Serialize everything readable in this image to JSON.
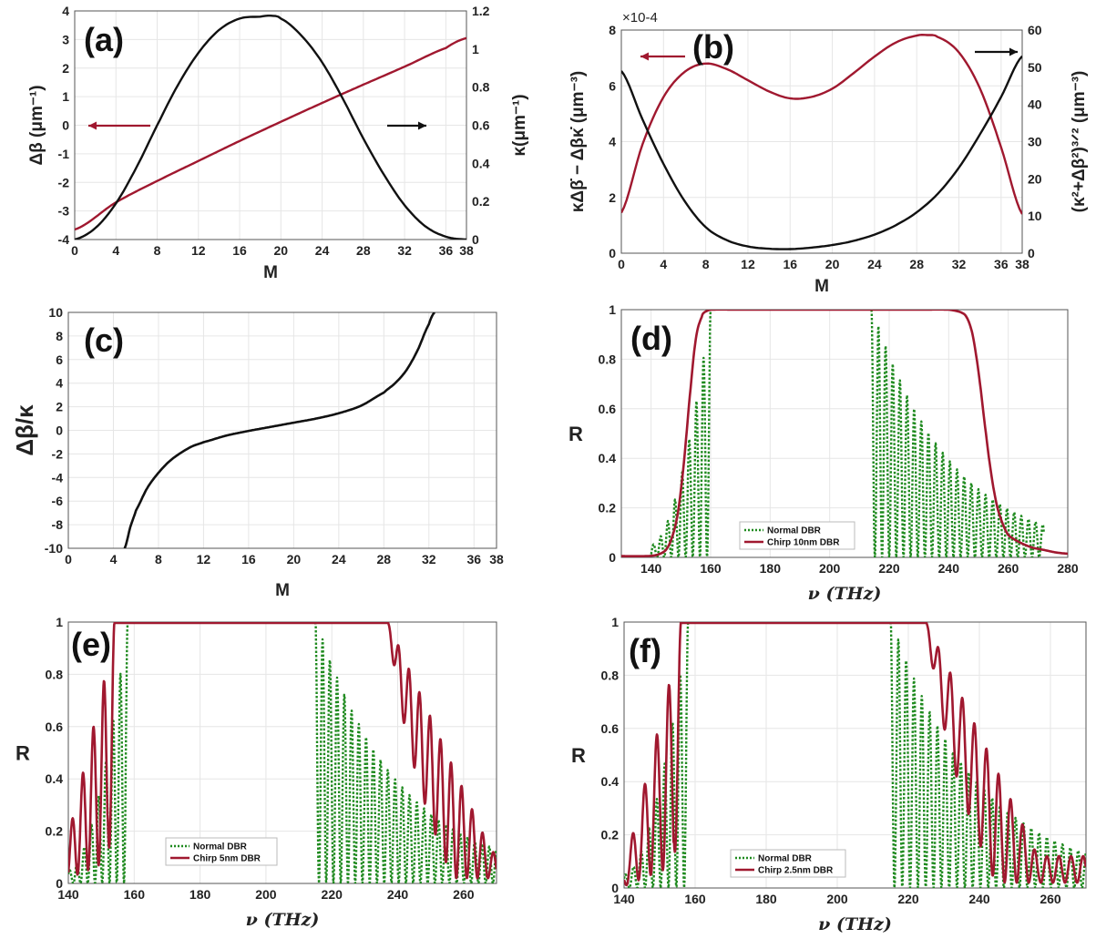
{
  "colors": {
    "red": "#a0182f",
    "green": "#1f8a1f",
    "black": "#111111",
    "grid": "#e6e6e6",
    "axis": "#555555"
  },
  "chart_data": [
    {
      "id": "a",
      "type": "line",
      "panel_label": "(a)",
      "xlabel": "M",
      "ylabel": "Δβ (μm⁻¹)",
      "ylabel_right": "κ(μm⁻¹)",
      "xlim": [
        0,
        38
      ],
      "ylim": [
        -4,
        4
      ],
      "ylim_right": [
        0,
        1.2
      ],
      "xticks": [
        "0",
        "4",
        "8",
        "12",
        "16",
        "20",
        "24",
        "28",
        "32",
        "36",
        "38"
      ],
      "yticks": [
        "-4",
        "-3",
        "-2",
        "-1",
        "0",
        "1",
        "2",
        "3",
        "4"
      ],
      "yticks_right": [
        "0",
        "0.2",
        "0.4",
        "0.6",
        "0.8",
        "1",
        "1.2"
      ],
      "series": [
        {
          "name": "Δβ",
          "axis": "left",
          "color": "red",
          "x": [
            0,
            4,
            8,
            12,
            16,
            20,
            24,
            28,
            32,
            36,
            38
          ],
          "y": [
            -3.65,
            -2.7,
            -1.95,
            -1.25,
            -0.55,
            0.12,
            0.78,
            1.42,
            2.05,
            2.7,
            3.05
          ]
        },
        {
          "name": "κ",
          "axis": "right",
          "color": "black",
          "x": [
            0,
            2,
            4,
            6,
            8,
            10,
            12,
            14,
            16,
            18,
            19,
            20,
            22,
            24,
            26,
            28,
            30,
            32,
            34,
            36,
            38
          ],
          "y": [
            0,
            0.06,
            0.19,
            0.38,
            0.6,
            0.81,
            0.98,
            1.1,
            1.16,
            1.17,
            1.175,
            1.16,
            1.07,
            0.93,
            0.74,
            0.53,
            0.34,
            0.18,
            0.07,
            0.015,
            0
          ]
        }
      ],
      "annotations": [
        "left-arrow red",
        "right-arrow black"
      ]
    },
    {
      "id": "b",
      "type": "line",
      "panel_label": "(b)",
      "xlabel": "M",
      "ylabel": "κΔβ̇ − Δβκ̇ (μm⁻³)",
      "ylabel_right": "(κ²+Δβ²)³ᐟ² (μm⁻³)",
      "multiplier": "×10-4",
      "xlim": [
        0,
        38
      ],
      "ylim": [
        0,
        8
      ],
      "ylim_right": [
        0,
        60
      ],
      "xticks": [
        "0",
        "4",
        "8",
        "12",
        "16",
        "20",
        "24",
        "28",
        "32",
        "36",
        "38"
      ],
      "yticks": [
        "0",
        "2",
        "4",
        "6",
        "8"
      ],
      "yticks_right": [
        "0",
        "10",
        "20",
        "30",
        "40",
        "50",
        "60"
      ],
      "series": [
        {
          "name": "κΔβ̇ − Δβκ̇",
          "axis": "left",
          "color": "red",
          "x": [
            0,
            2,
            4,
            6,
            8,
            10,
            12,
            14,
            16,
            18,
            20,
            22,
            24,
            26,
            28,
            29,
            30,
            32,
            34,
            36,
            38
          ],
          "y": [
            1.45,
            3.9,
            5.6,
            6.5,
            6.8,
            6.6,
            6.2,
            5.8,
            5.55,
            5.6,
            5.9,
            6.45,
            7.05,
            7.55,
            7.8,
            7.82,
            7.75,
            7.2,
            5.9,
            3.8,
            1.4
          ]
        },
        {
          "name": "(κ²+Δβ²)³ᐟ²",
          "axis": "right",
          "color": "black",
          "x": [
            0,
            2,
            4,
            6,
            8,
            10,
            12,
            14,
            16,
            18,
            20,
            22,
            24,
            26,
            28,
            30,
            32,
            34,
            36,
            38
          ],
          "y": [
            49,
            36,
            24,
            14,
            7,
            3.5,
            1.8,
            1.2,
            1.1,
            1.5,
            2.2,
            3.3,
            5,
            7.5,
            11,
            16,
            23,
            32,
            42,
            53
          ]
        }
      ],
      "annotations": [
        "left-arrow red",
        "right-arrow black"
      ]
    },
    {
      "id": "c",
      "type": "line",
      "panel_label": "(c)",
      "xlabel": "M",
      "ylabel": "Δβ/κ",
      "xlim": [
        0,
        38
      ],
      "ylim": [
        -10,
        10
      ],
      "xticks": [
        "0",
        "4",
        "8",
        "12",
        "16",
        "20",
        "24",
        "28",
        "32",
        "36",
        "38"
      ],
      "yticks": [
        "-10",
        "-8",
        "-6",
        "-4",
        "-2",
        "0",
        "2",
        "4",
        "6",
        "8",
        "10"
      ],
      "series": [
        {
          "name": "Δβ/κ",
          "color": "black",
          "x": [
            5,
            5.5,
            6,
            7,
            8,
            9,
            10,
            11,
            12,
            14,
            16,
            18,
            20,
            22,
            24,
            26,
            28,
            29,
            30,
            31,
            32,
            32.5
          ],
          "y": [
            -10,
            -8.2,
            -6.8,
            -4.9,
            -3.6,
            -2.6,
            -1.9,
            -1.35,
            -1,
            -0.45,
            -0.05,
            0.3,
            0.65,
            1.0,
            1.45,
            2.1,
            3.2,
            4,
            5.1,
            6.8,
            9,
            10
          ]
        }
      ]
    },
    {
      "id": "d",
      "type": "line",
      "panel_label": "(d)",
      "xlabel": "ν (THz)",
      "ylabel": "R",
      "xlim": [
        130,
        280
      ],
      "ylim": [
        0,
        1
      ],
      "xticks": [
        "140",
        "160",
        "180",
        "200",
        "220",
        "240",
        "260",
        "280"
      ],
      "yticks": [
        "0",
        "0.2",
        "0.4",
        "0.6",
        "0.8",
        "1"
      ],
      "legend": [
        "Normal DBR",
        "Chirp 10nm DBR"
      ],
      "series": [
        {
          "name": "Normal DBR",
          "color": "green",
          "dashed": true,
          "band_low": 140,
          "band_left_edge": 160,
          "band_right_edge": 214,
          "band_high": 272,
          "fringe_period": 2.4
        },
        {
          "name": "Chirp 10nm DBR",
          "color": "red",
          "x": [
            130,
            138,
            142,
            145,
            147,
            149,
            151,
            153,
            155,
            157,
            158,
            160,
            170,
            200,
            230,
            240,
            244,
            246,
            248,
            250,
            252,
            254,
            256,
            258,
            260,
            264,
            268,
            272,
            276,
            280
          ],
          "y": [
            0.005,
            0.005,
            0.01,
            0.03,
            0.08,
            0.18,
            0.38,
            0.65,
            0.88,
            0.97,
            0.99,
            1,
            1,
            1,
            1,
            1,
            0.99,
            0.97,
            0.9,
            0.75,
            0.55,
            0.36,
            0.22,
            0.14,
            0.09,
            0.06,
            0.04,
            0.03,
            0.02,
            0.015
          ]
        }
      ]
    },
    {
      "id": "e",
      "type": "line",
      "panel_label": "(e)",
      "xlabel": "ν (THz)",
      "ylabel": "R",
      "xlim": [
        140,
        270
      ],
      "ylim": [
        0,
        1
      ],
      "xticks": [
        "140",
        "160",
        "180",
        "200",
        "220",
        "240",
        "260"
      ],
      "yticks": [
        "0",
        "0.2",
        "0.4",
        "0.6",
        "0.8",
        "1"
      ],
      "legend": [
        "Normal DBR",
        "Chirp 5nm DBR"
      ],
      "series": [
        {
          "name": "Normal DBR",
          "color": "green",
          "dashed": true,
          "band_low": 140,
          "band_left_edge": 158,
          "band_right_edge": 215,
          "band_high": 270,
          "fringe_period": 2.2
        },
        {
          "name": "Chirp 5nm DBR",
          "color": "red",
          "band_left_edge": 154,
          "band_right_edge": 237,
          "ripple_period": 3.2
        }
      ]
    },
    {
      "id": "f",
      "type": "line",
      "panel_label": "(f)",
      "xlabel": "ν (THz)",
      "ylabel": "R",
      "xlim": [
        140,
        270
      ],
      "ylim": [
        0,
        1
      ],
      "xticks": [
        "140",
        "160",
        "180",
        "200",
        "220",
        "240",
        "260"
      ],
      "yticks": [
        "0",
        "0.2",
        "0.4",
        "0.6",
        "0.8",
        "1"
      ],
      "legend": [
        "Normal DBR",
        "Chirp 2.5nm DBR"
      ],
      "series": [
        {
          "name": "Normal DBR",
          "color": "green",
          "dashed": true,
          "band_low": 140,
          "band_left_edge": 158,
          "band_right_edge": 215,
          "band_high": 270,
          "fringe_period": 2.2
        },
        {
          "name": "Chirp 2.5nm DBR",
          "color": "red",
          "band_left_edge": 156,
          "band_right_edge": 225,
          "ripple_period": 3.4
        }
      ]
    }
  ]
}
